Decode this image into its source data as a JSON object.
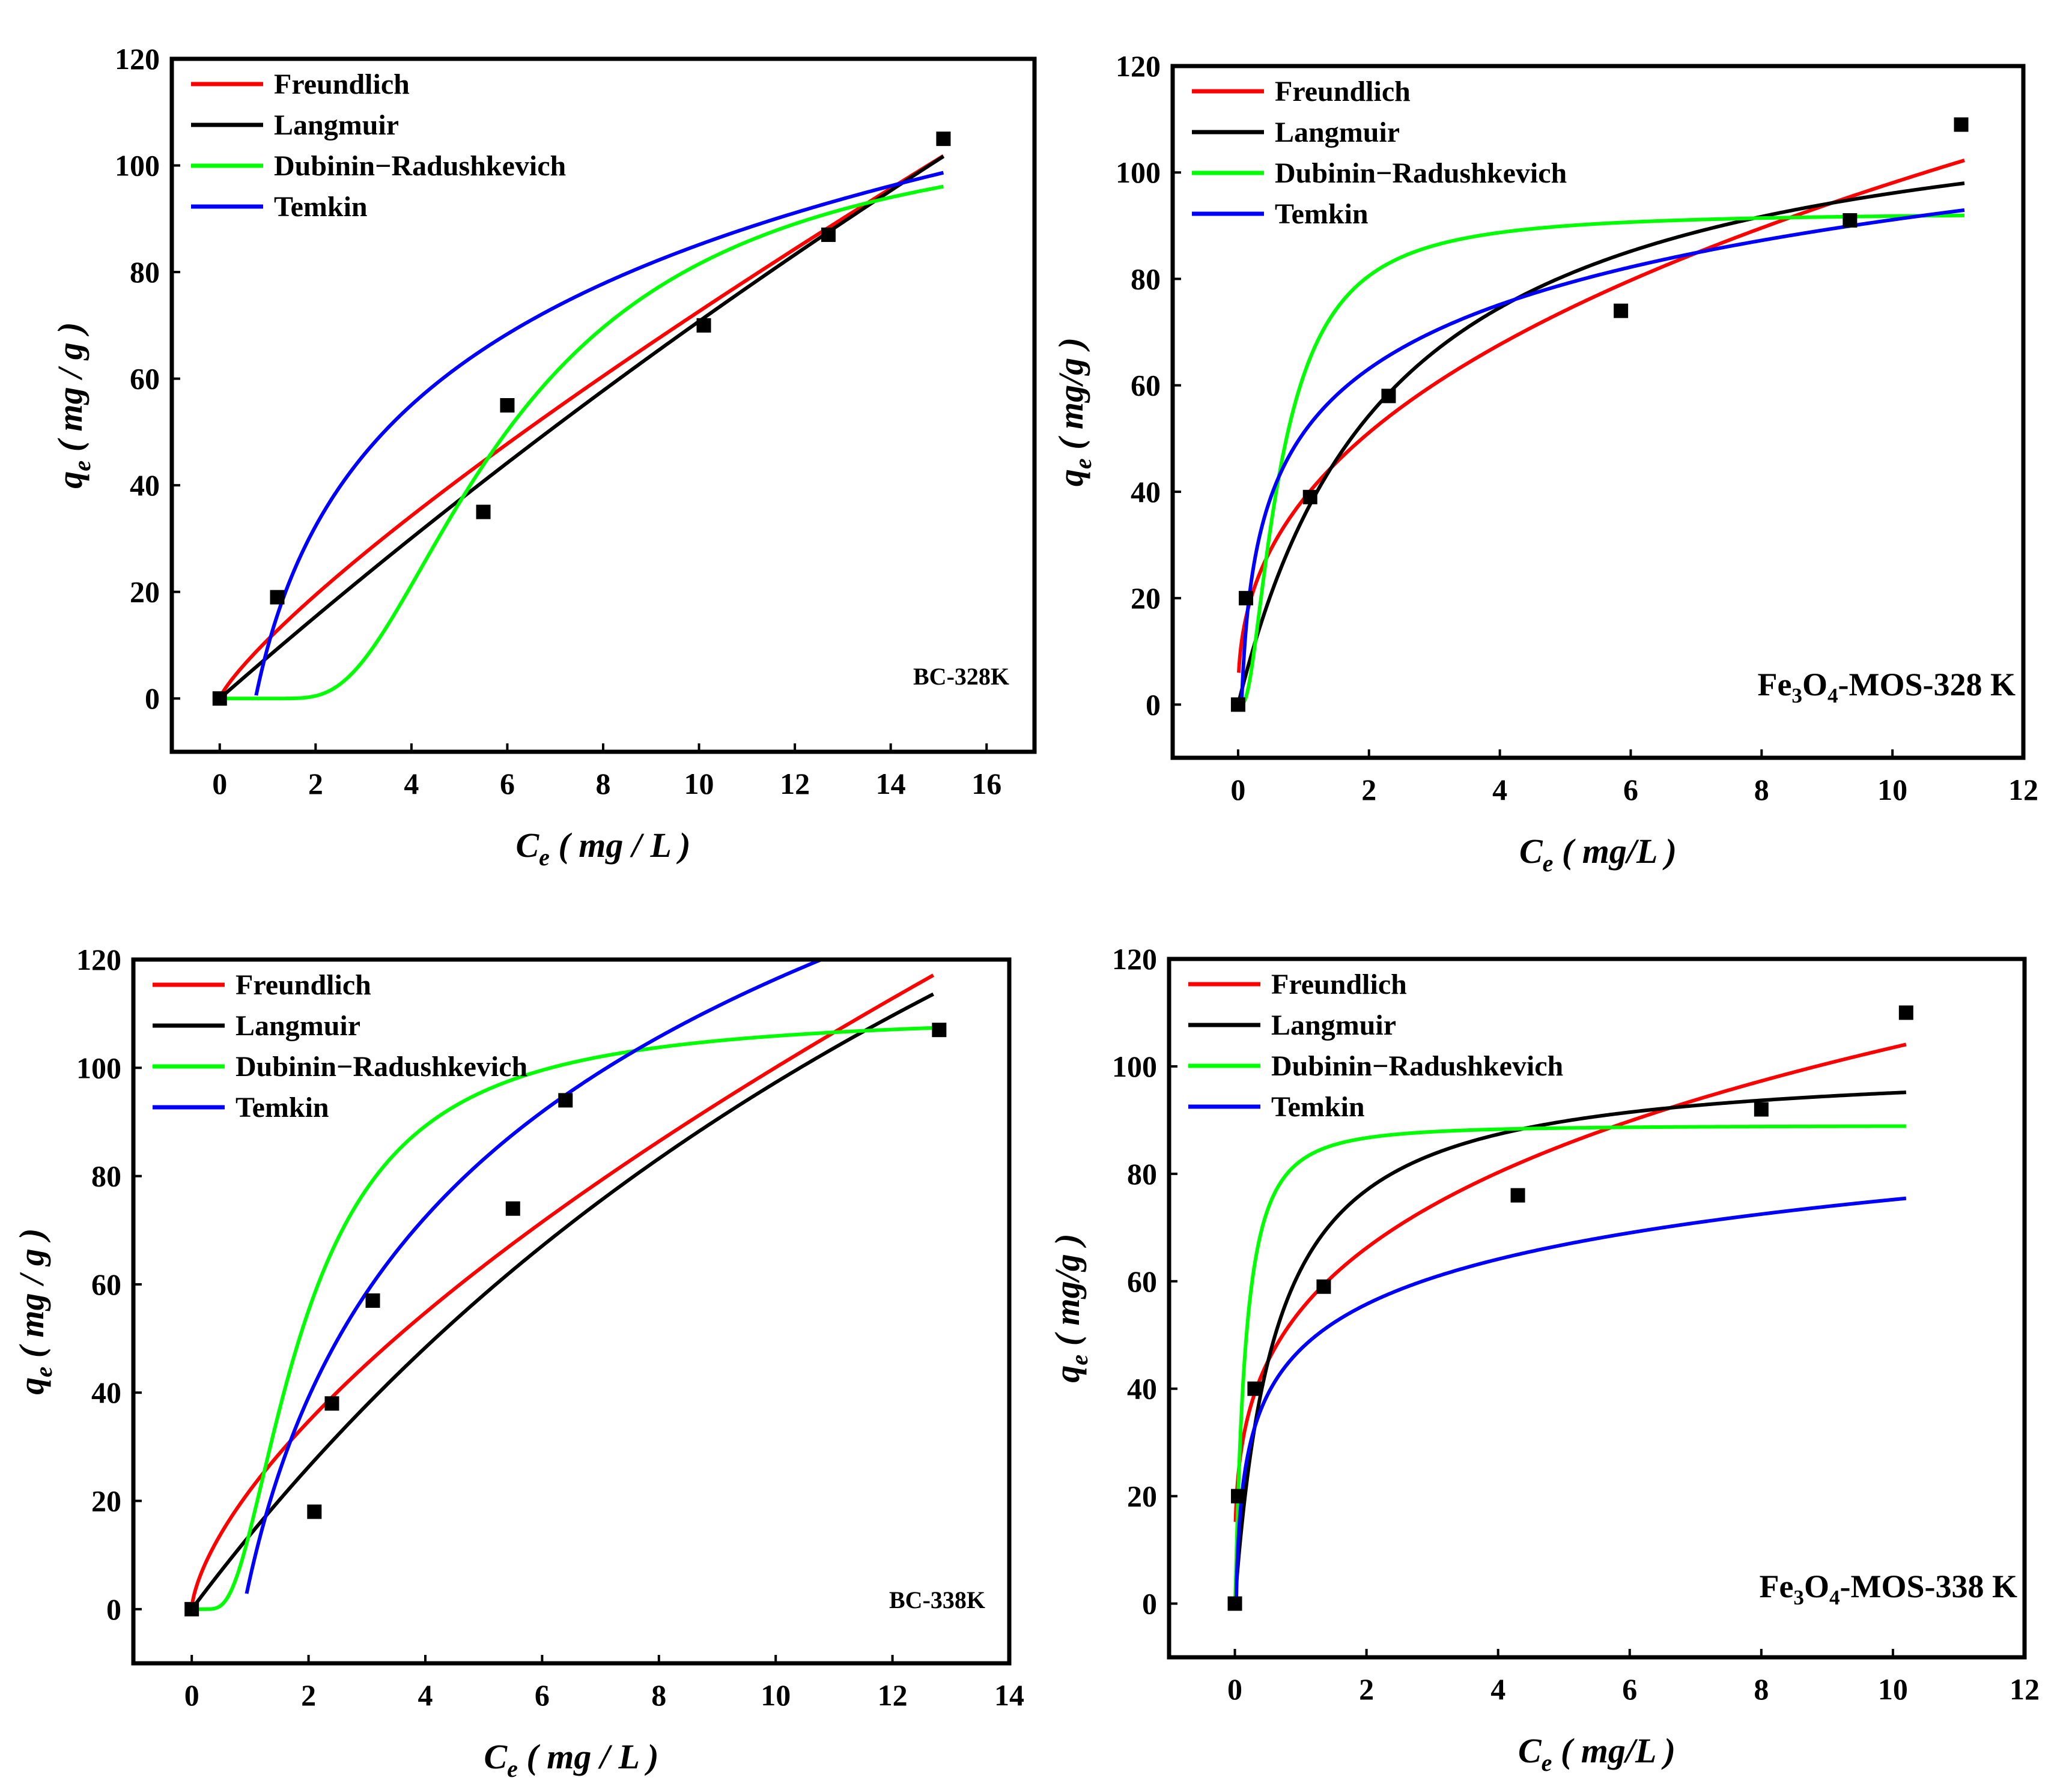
{
  "chart_data": [
    {
      "type": "scatter",
      "panel_label": "BC-328K",
      "xlabel": {
        "main": "C",
        "sub": "e",
        "unit": " ( mg / L )"
      },
      "ylabel": {
        "main": "q",
        "sub": "e",
        "unit": " ( mg / g )"
      },
      "xlim": [
        -1,
        17
      ],
      "ylim": [
        -10,
        120
      ],
      "xticks": [
        0,
        2,
        4,
        6,
        8,
        10,
        12,
        14,
        16
      ],
      "yticks": [
        0,
        20,
        40,
        60,
        80,
        100,
        120
      ],
      "legend": [
        "Freundlich",
        "Langmuir",
        "Dubinin−Radushkevich",
        "Temkin"
      ],
      "points": {
        "x": [
          0,
          1.2,
          5.5,
          6.0,
          10.1,
          12.7,
          15.1
        ],
        "y": [
          0,
          19,
          35,
          55,
          70,
          87,
          105
        ]
      },
      "series": [
        {
          "name": "Freundlich",
          "color": "#ff0000",
          "model": "freundlich",
          "params": {
            "K": 11.0,
            "n": 1.22
          },
          "xrange": [
            0.02,
            15.1
          ]
        },
        {
          "name": "Langmuir",
          "color": "#000000",
          "model": "langmuir",
          "params": {
            "qm": 714,
            "KL": 0.011
          },
          "xrange": [
            0.0,
            15.1
          ]
        },
        {
          "name": "Dubinin−Radushkevich",
          "color": "#00ff00",
          "model": "dr",
          "params": {
            "qm": 110,
            "B": 33
          },
          "xrange": [
            0.0,
            15.1
          ]
        },
        {
          "name": "Temkin",
          "color": "#0000ff",
          "model": "temkin",
          "params": {
            "A": 1.34,
            "B": 32.8
          },
          "xrange": [
            0.76,
            15.1
          ]
        }
      ]
    },
    {
      "type": "scatter",
      "panel_label": {
        "pre": "Fe",
        "s1": "3",
        "mid": "O",
        "s2": "4",
        "post": "-MOS-328 K"
      },
      "xlabel": {
        "main": "C",
        "sub": "e",
        "unit": " ( mg/L )"
      },
      "ylabel": {
        "main": "q",
        "sub": "e",
        "unit": " ( mg/g )"
      },
      "xlim": [
        -1,
        12
      ],
      "ylim": [
        -10,
        120
      ],
      "xticks": [
        0,
        2,
        4,
        6,
        8,
        10,
        12
      ],
      "yticks": [
        0,
        20,
        40,
        60,
        80,
        100,
        120
      ],
      "legend": [
        "Freundlich",
        "Langmuir",
        "Dubinin−Radushkevich",
        "Temkin"
      ],
      "points": {
        "x": [
          0,
          0.12,
          1.1,
          2.3,
          5.85,
          9.35,
          11.05
        ],
        "y": [
          0,
          20,
          39,
          58,
          74,
          91,
          109
        ]
      },
      "series": [
        {
          "name": "Freundlich",
          "color": "#ff0000",
          "model": "freundlich",
          "params": {
            "K": 38.6,
            "n": 2.47
          },
          "xrange": [
            0.01,
            11.1
          ]
        },
        {
          "name": "Langmuir",
          "color": "#000000",
          "model": "langmuir",
          "params": {
            "qm": 119,
            "KL": 0.42
          },
          "xrange": [
            0.0,
            11.1
          ]
        },
        {
          "name": "Dubinin−Radushkevich",
          "color": "#00ff00",
          "model": "dr",
          "params": {
            "qm": 92.5,
            "B": 0.84
          },
          "xrange": [
            0.0,
            11.1
          ]
        },
        {
          "name": "Temkin",
          "color": "#0000ff",
          "model": "temkin",
          "params": {
            "A": 18.8,
            "B": 17.4
          },
          "xrange": [
            0.055,
            11.1
          ]
        }
      ]
    },
    {
      "type": "scatter",
      "panel_label": "BC-338K",
      "xlabel": {
        "main": "C",
        "sub": "e",
        "unit": " ( mg / L )"
      },
      "ylabel": {
        "main": "q",
        "sub": "e",
        "unit": " ( mg / g )"
      },
      "xlim": [
        -1,
        14
      ],
      "ylim": [
        -10,
        120
      ],
      "xticks": [
        0,
        2,
        4,
        6,
        8,
        10,
        12,
        14
      ],
      "yticks": [
        0,
        20,
        40,
        60,
        80,
        100,
        120
      ],
      "legend": [
        "Freundlich",
        "Langmuir",
        "Dubinin−Radushkevich",
        "Temkin"
      ],
      "points": {
        "x": [
          0,
          2.1,
          2.4,
          3.1,
          5.5,
          6.4,
          12.8
        ],
        "y": [
          0,
          18,
          38,
          57,
          74,
          94,
          107
        ]
      },
      "series": [
        {
          "name": "Freundlich",
          "color": "#ff0000",
          "model": "freundlich",
          "params": {
            "K": 22.0,
            "n": 1.52
          },
          "xrange": [
            0.01,
            12.7
          ]
        },
        {
          "name": "Langmuir",
          "color": "#000000",
          "model": "langmuir",
          "params": {
            "qm": 300,
            "KL": 0.048
          },
          "xrange": [
            0.0,
            12.7
          ]
        },
        {
          "name": "Dubinin−Radushkevich",
          "color": "#00ff00",
          "model": "dr",
          "params": {
            "qm": 110,
            "B": 4.2
          },
          "xrange": [
            0.0,
            12.7
          ]
        },
        {
          "name": "Temkin",
          "color": "#0000ff",
          "model": "temkin",
          "params": {
            "A": 1.13,
            "B": 48
          },
          "xrange": [
            0.94,
            12.7
          ]
        }
      ]
    },
    {
      "type": "scatter",
      "panel_label": {
        "pre": "Fe",
        "s1": "3",
        "mid": "O",
        "s2": "4",
        "post": "-MOS-338 K"
      },
      "xlabel": {
        "main": "C",
        "sub": "e",
        "unit": " ( mg/L )"
      },
      "ylabel": {
        "main": "q",
        "sub": "e",
        "unit": " ( mg/g )"
      },
      "xlim": [
        -1,
        12
      ],
      "ylim": [
        -10,
        120
      ],
      "xticks": [
        0,
        2,
        4,
        6,
        8,
        10,
        12
      ],
      "yticks": [
        0,
        20,
        40,
        60,
        80,
        100,
        120
      ],
      "legend": [
        "Freundlich",
        "Langmuir",
        "Dubinin−Radushkevich",
        "Temkin"
      ],
      "points": {
        "x": [
          0,
          0.05,
          0.3,
          1.35,
          4.3,
          8.0,
          10.2
        ],
        "y": [
          0,
          20,
          40,
          59,
          76,
          92,
          110
        ]
      },
      "series": [
        {
          "name": "Freundlich",
          "color": "#ff0000",
          "model": "freundlich",
          "params": {
            "K": 54.6,
            "n": 3.6
          },
          "xrange": [
            0.01,
            10.2
          ]
        },
        {
          "name": "Langmuir",
          "color": "#000000",
          "model": "langmuir",
          "params": {
            "qm": 101,
            "KL": 1.6
          },
          "xrange": [
            0.0,
            10.2
          ]
        },
        {
          "name": "Dubinin−Radushkevich",
          "color": "#00ff00",
          "model": "dr",
          "params": {
            "qm": 89,
            "B": 0.16
          },
          "xrange": [
            0.0,
            10.2
          ]
        },
        {
          "name": "Temkin",
          "color": "#0000ff",
          "model": "temkin",
          "params": {
            "A": 50,
            "B": 12.1
          },
          "xrange": [
            0.02,
            10.2
          ]
        }
      ]
    }
  ]
}
